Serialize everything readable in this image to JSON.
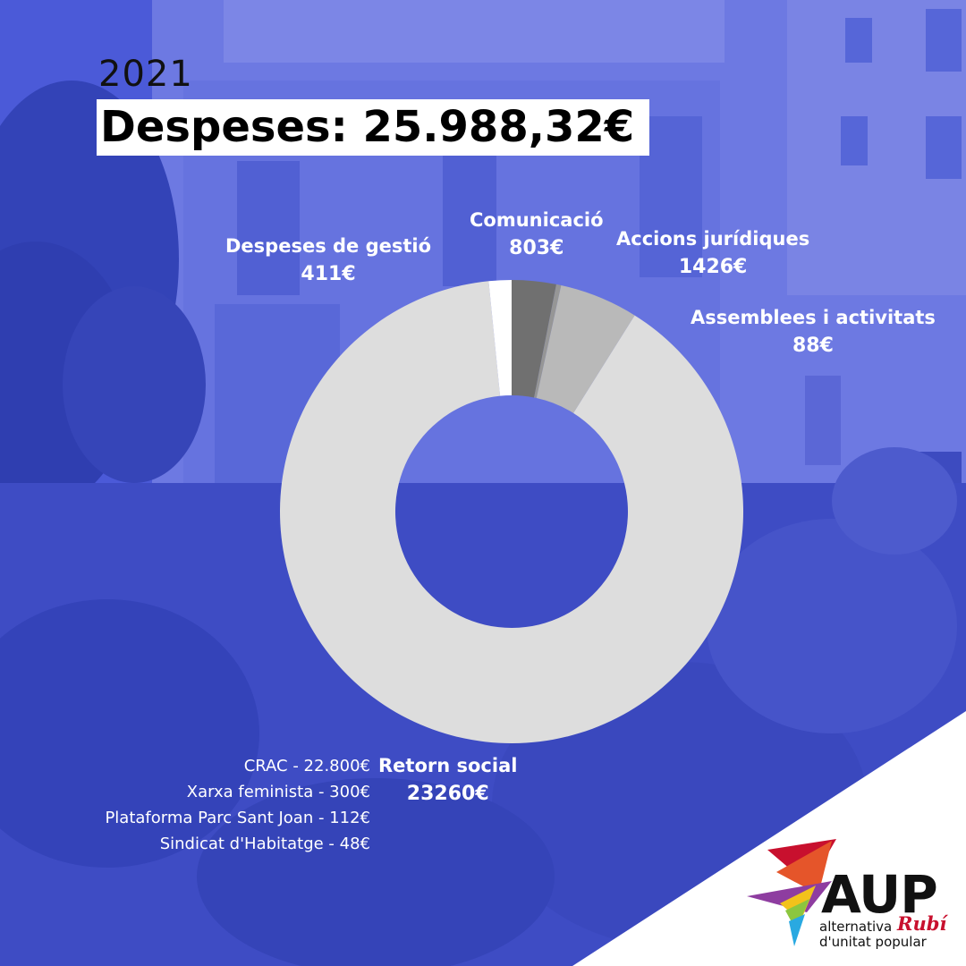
{
  "header": {
    "year": "2021",
    "total": "Despeses: 25.988,32€"
  },
  "chart_data": {
    "type": "pie",
    "title": "Despeses: 25.988,32€",
    "categories": [
      "Comunicació",
      "Assemblees i activitats",
      "Accions jurídiques",
      "Retorn social",
      "Despeses de gestió"
    ],
    "values": [
      803,
      88,
      1426,
      23260,
      411
    ],
    "value_labels": [
      "803€",
      "88€",
      "1426€",
      "23260€",
      "411€"
    ],
    "colors": [
      "#707070",
      "#969696",
      "#b9b9b9",
      "#dddddd",
      "#ffffff"
    ],
    "donut": true
  },
  "breakdown": [
    "CRAC - 22.800€",
    "Xarxa feminista - 300€",
    "Plataforma Parc Sant Joan - 112€",
    "Sindicat d'Habitatge - 48€"
  ],
  "logo": {
    "name": "AUP",
    "place": "Rubí",
    "subtitle_line1": "alternativa",
    "subtitle_line2": "d'unitat popular"
  }
}
